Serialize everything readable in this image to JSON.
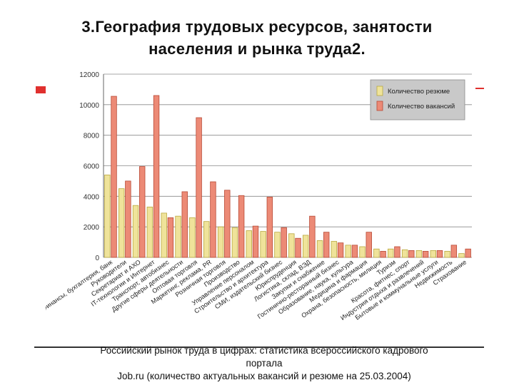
{
  "slide": {
    "title_line1": "3.География трудовых ресурсов, занятости",
    "title_line2": "населения и рынка труда2.",
    "caption_line1": "Российский рынок труда в цифрах: статистика всероссийского кадрового",
    "caption_line2": "портала",
    "caption_line3": "Job.ru (количество актуальных вакансий и резюме на 25.03.2004)"
  },
  "colors": {
    "resume": "#efe39a",
    "resume_stroke": "#b9a83f",
    "vacancy": "#ec8a76",
    "vacancy_stroke": "#b84a36",
    "grid": "#8a8a8a",
    "plot_bg": "#ffffff",
    "accent": "#e0302e"
  },
  "chart_data": {
    "type": "bar",
    "title": "",
    "xlabel": "",
    "ylabel": "",
    "ylim": [
      0,
      12000
    ],
    "yticks": [
      "0",
      "2000",
      "4000",
      "6000",
      "8000",
      "10000",
      "12000"
    ],
    "grid": true,
    "legend_position": "top-right",
    "categories": [
      "Финансы, бухгалтерия, банк",
      "Руководители",
      "Секретариат и АХО",
      "IT-технологии и Интернет",
      "Транспорт, автобизнес",
      "Другие сферы деятельности",
      "Оптовая торговля",
      "Маркетинг, реклама, PR",
      "Розничная торговля",
      "Производство",
      "Управление персоналом",
      "Строительство и архитектура",
      "СМИ, издательский бизнес",
      "Юриспруденция",
      "Логистика, склад, ВЭД",
      "Закупки и снабжение",
      "Гостинично-ресторанный бизнес",
      "Образование, наука, культура",
      "Медицина и фармация",
      "Охрана, безопасность, милиция",
      "Туризм",
      "Красота, фитнес, спорт",
      "Индустрия отдыха и развлечений",
      "Бытовые и коммунальные услуги",
      "Недвижимость",
      "Страхование"
    ],
    "series": [
      {
        "name": "Количество резюме",
        "values": [
          5400,
          4500,
          3400,
          3300,
          2900,
          2700,
          2600,
          2350,
          2000,
          1950,
          1750,
          1700,
          1650,
          1550,
          1450,
          1100,
          1050,
          800,
          700,
          550,
          550,
          500,
          450,
          450,
          400,
          250
        ]
      },
      {
        "name": "Количество вакансий",
        "values": [
          10550,
          5000,
          5950,
          10600,
          2600,
          4300,
          9150,
          4950,
          4400,
          4050,
          2050,
          3950,
          1950,
          1250,
          2700,
          1650,
          950,
          800,
          1650,
          400,
          700,
          450,
          400,
          450,
          800,
          550
        ]
      }
    ]
  }
}
